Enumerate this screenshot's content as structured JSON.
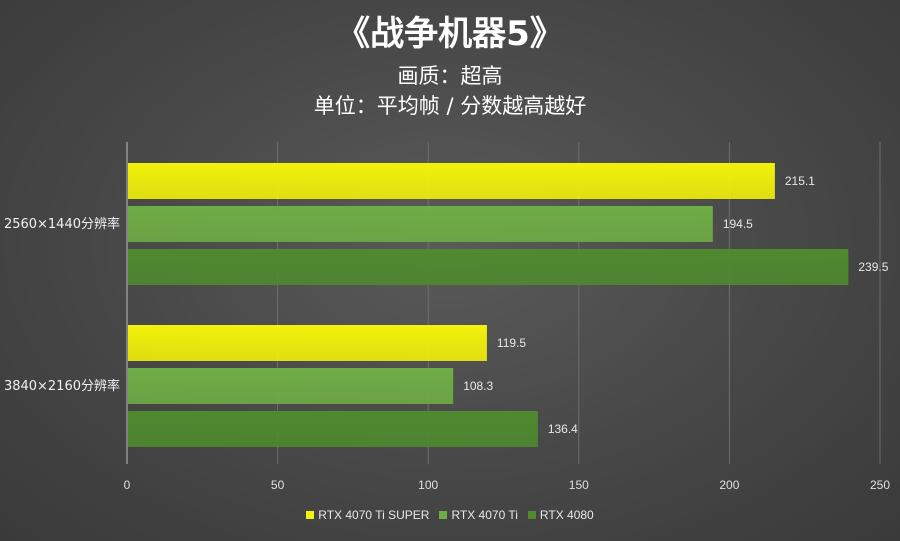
{
  "chart_data": {
    "type": "bar",
    "orientation": "horizontal",
    "title": "《战争机器5》",
    "subtitle_lines": [
      "画质：超高",
      "单位：平均帧 / 分数越高越好"
    ],
    "categories": [
      "2560×1440分辨率",
      "3840×2160分辨率"
    ],
    "series": [
      {
        "name": "RTX 4070 Ti SUPER",
        "color": "#f2f20a",
        "values": [
          215.1,
          119.5
        ]
      },
      {
        "name": "RTX 4070 Ti",
        "color": "#6fad45",
        "values": [
          194.5,
          108.3
        ]
      },
      {
        "name": "RTX 4080",
        "color": "#4f8a2e",
        "values": [
          239.5,
          136.4
        ]
      }
    ],
    "xlim": [
      0,
      250
    ],
    "xticks": [
      "0",
      "50",
      "100",
      "150",
      "200",
      "250"
    ],
    "grid": "vertical",
    "legend": "bottom-center",
    "data_labels": true
  }
}
